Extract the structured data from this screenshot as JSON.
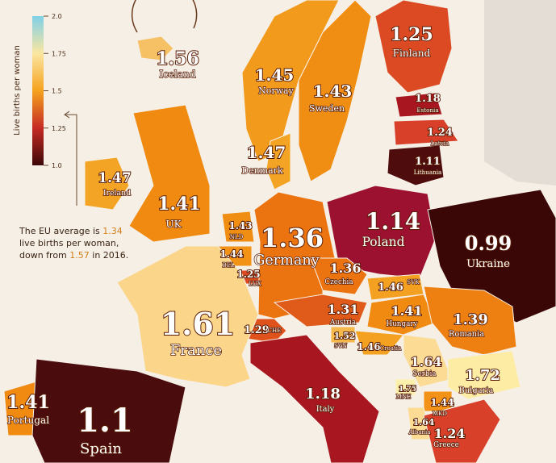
{
  "legend": {
    "title": "Live births per woman",
    "ticks": [
      {
        "value": 1,
        "label": "1.0"
      },
      1.25,
      1.5,
      1.75,
      {
        "value": 2,
        "label": "2.0"
      }
    ],
    "colors": [
      "#3d0808",
      "#c62a24",
      "#f5a21e",
      "#fbe6a0",
      "#7fd0e8"
    ]
  },
  "regions": [
    {
      "name": "Iceland",
      "value": 1.56,
      "color": "#f6c064"
    },
    {
      "name": "Norway",
      "value": 1.45,
      "color": "#f29a1c"
    },
    {
      "name": "Sweden",
      "value": 1.43,
      "color": "#f08e14"
    },
    {
      "name": "Finland",
      "value": 1.25,
      "color": "#dc4a24"
    },
    {
      "name": "Estonia",
      "value": 1.18,
      "color": "#a8171f"
    },
    {
      "name": "Latvia",
      "value": 1.24,
      "color": "#d8402a"
    },
    {
      "name": "Lithuania",
      "value": 1.11,
      "color": "#4e0c0c"
    },
    {
      "name": "Denmark",
      "value": 1.47,
      "color": "#f4a424"
    },
    {
      "name": "Ireland",
      "value": 1.47,
      "color": "#f4a424"
    },
    {
      "name": "UK",
      "value": 1.41,
      "color": "#f08a10"
    },
    {
      "name": "NLD",
      "value": 1.43,
      "color": "#f08e14"
    },
    {
      "name": "BEL",
      "value": 1.44,
      "color": "#f29216"
    },
    {
      "name": "LUX",
      "value": 1.25,
      "color": "#dc4a24"
    },
    {
      "name": "Germany",
      "value": 1.36,
      "color": "#ec7410"
    },
    {
      "name": "Poland",
      "value": 1.14,
      "color": "#9c1030"
    },
    {
      "name": "Ukraine",
      "value": 0.99,
      "color": "#3b0606"
    },
    {
      "name": "Czechia",
      "value": 1.36,
      "color": "#ec7410"
    },
    {
      "name": "SVK",
      "value": 1.46,
      "color": "#f4a020"
    },
    {
      "name": "Austria",
      "value": 1.31,
      "color": "#e05a1a"
    },
    {
      "name": "Hungary",
      "value": 1.41,
      "color": "#f08a10"
    },
    {
      "name": "Romania",
      "value": 1.39,
      "color": "#ee8012"
    },
    {
      "name": "CHE",
      "value": 1.29,
      "color": "#e0521c"
    },
    {
      "name": "France",
      "value": 1.61,
      "color": "#fbd68a"
    },
    {
      "name": "SVN",
      "value": 1.52,
      "color": "#f6b84a"
    },
    {
      "name": "Croatia",
      "value": 1.46,
      "color": "#f4a020"
    },
    {
      "name": "Serbia",
      "value": 1.64,
      "color": "#fcdc94"
    },
    {
      "name": "Bulgaria",
      "value": 1.72,
      "color": "#fdeca4"
    },
    {
      "name": "Italy",
      "value": 1.18,
      "color": "#a8171f"
    },
    {
      "name": "MNE",
      "value": 1.75,
      "color": "#fdf0ac"
    },
    {
      "name": "MKD",
      "value": 1.44,
      "color": "#f29216"
    },
    {
      "name": "Albania",
      "value": 1.64,
      "color": "#fcdc94"
    },
    {
      "name": "Greece",
      "value": 1.24,
      "color": "#d8402a"
    },
    {
      "name": "Portugal",
      "value": 1.41,
      "color": "#f08a10"
    },
    {
      "name": "Spain",
      "value": 1.1,
      "color": "#4a0c0c"
    }
  ],
  "note": {
    "prefix": "The EU average is",
    "eu_average": 1.34,
    "line2": "live births per woman,",
    "down_from": "down from",
    "previous": 1.57,
    "suffix": "in 2016."
  }
}
